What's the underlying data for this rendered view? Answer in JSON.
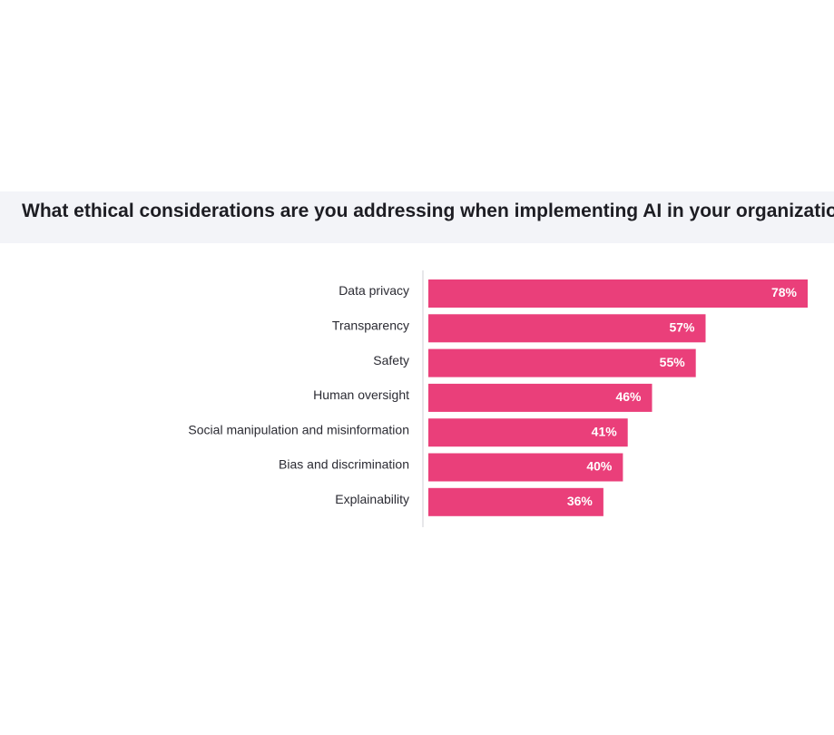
{
  "chart_data": {
    "type": "bar",
    "orientation": "horizontal",
    "title": "What ethical considerations are you addressing when implementing AI in your organization?",
    "categories": [
      "Data privacy",
      "Transparency",
      "Safety",
      "Human oversight",
      "Social manipulation and misinformation",
      "Bias and discrimination",
      "Explainability"
    ],
    "values": [
      78,
      57,
      55,
      46,
      41,
      40,
      36
    ],
    "value_labels": [
      "78%",
      "57%",
      "55%",
      "46%",
      "41%",
      "40%",
      "36%"
    ],
    "unit": "%",
    "xlim": [
      0,
      78
    ],
    "grid": false,
    "legend": "none",
    "colors": {
      "bar": "#ea3f7a",
      "label": "#2b2b33",
      "value_label": "#ffffff",
      "axis": "#cfcfd4",
      "title_band": "#f3f4f8"
    }
  }
}
